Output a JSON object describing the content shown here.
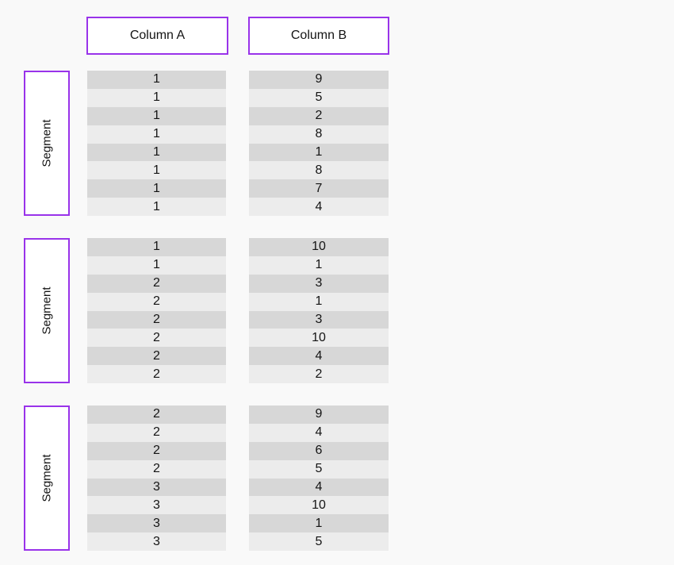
{
  "colors": {
    "accent_purple": "#9933ea",
    "row_dark": "#d7d7d7",
    "row_light": "#ececec",
    "page_background": "#f9f9f9",
    "text": "#141414"
  },
  "headers": [
    {
      "label": "Column A"
    },
    {
      "label": "Column B"
    }
  ],
  "segments": [
    {
      "label": "Segment",
      "column_a": [
        "1",
        "1",
        "1",
        "1",
        "1",
        "1",
        "1",
        "1"
      ],
      "column_b": [
        "9",
        "5",
        "2",
        "8",
        "1",
        "8",
        "7",
        "4"
      ]
    },
    {
      "label": "Segment",
      "column_a": [
        "1",
        "1",
        "2",
        "2",
        "2",
        "2",
        "2",
        "2"
      ],
      "column_b": [
        "10",
        "1",
        "3",
        "1",
        "3",
        "10",
        "4",
        "2"
      ]
    },
    {
      "label": "Segment",
      "column_a": [
        "2",
        "2",
        "2",
        "2",
        "3",
        "3",
        "3",
        "3"
      ],
      "column_b": [
        "9",
        "4",
        "6",
        "5",
        "4",
        "10",
        "1",
        "5"
      ]
    }
  ]
}
